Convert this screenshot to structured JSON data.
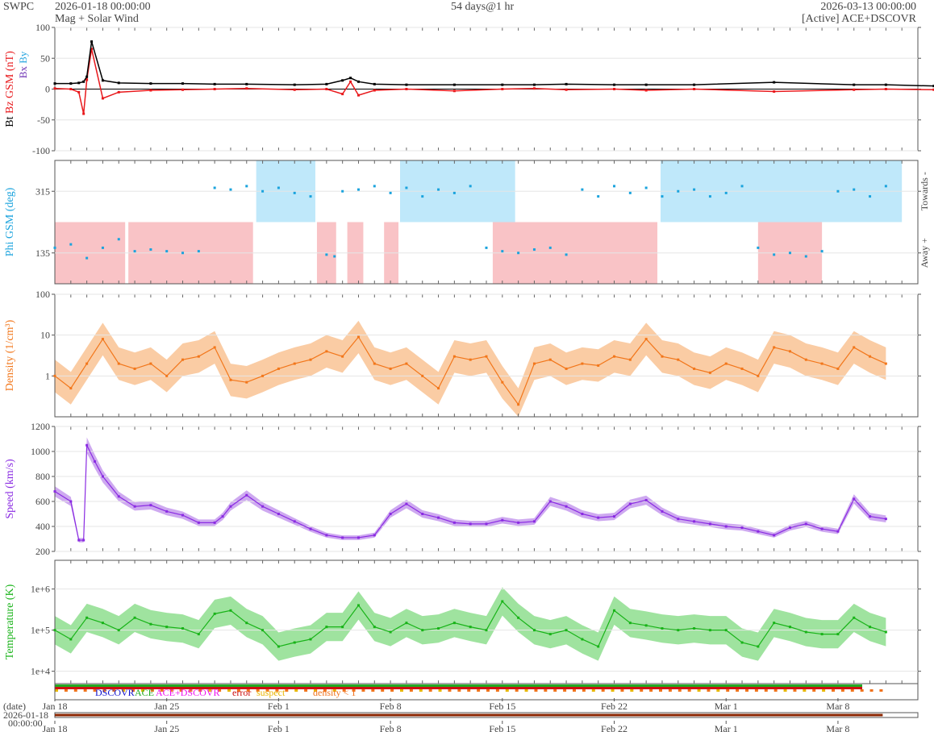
{
  "header": {
    "brand": "SWPC",
    "start": "2026-01-18 00:00:00",
    "title": "Mag + Solar Wind",
    "span": "54 days@1 hr",
    "end": "2026-03-13 00:00:00",
    "source": "[Active] ACE+DSCOVR"
  },
  "colors": {
    "bt": "#000000",
    "bz": "#e8191c",
    "bx": "#6b2fb3",
    "by": "#2aa7e0",
    "phi": "#1aa3dd",
    "towards_fill": "#bfe8fa",
    "away_fill": "#f9c3c6",
    "density": "#f2761a",
    "density_fill": "#f9c79a",
    "speed": "#8a2be2",
    "speed_fill": "#c9a0ee",
    "temperature": "#18b318",
    "temperature_fill": "#95e095",
    "dscovr": "#1111cc",
    "ace": "#22aa22",
    "acedscovr": "#ee11ee",
    "error": "#cc1111",
    "suspect": "#e8b400",
    "density_lt_1": "#f0721c"
  },
  "legend": {
    "dscovr": "DSCOVR",
    "ace": "ACE",
    "acedscovr": "ACE+DSCOVR",
    "error": "error",
    "suspect": "suspect",
    "density_lt_1": "density < 1"
  },
  "footer": {
    "date_label": "(date)",
    "date_value": "2026-01-18",
    "time_value": "00:00:00"
  },
  "chart_data": [
    {
      "id": "mag",
      "type": "scatter",
      "ylabel_parts": [
        "Bt",
        "Bz GSM (nT)"
      ],
      "legend_parts": [
        "Bx",
        "By"
      ],
      "ylim": [
        -100,
        100
      ],
      "yticks": [
        "100",
        "50",
        "0",
        "-50",
        "-100"
      ],
      "ytick_values": [
        100,
        50,
        0,
        -50,
        -100
      ],
      "series": [
        {
          "name": "Bt",
          "x": [
            0,
            1,
            1.5,
            1.8,
            2,
            2.3,
            3,
            4,
            6,
            8,
            10,
            12,
            15,
            17,
            18,
            18.5,
            19,
            20,
            22,
            25,
            28,
            30,
            32,
            35,
            37,
            40,
            45,
            50,
            52,
            55,
            58,
            60,
            62,
            65
          ],
          "y": [
            9,
            9,
            10,
            12,
            20,
            77,
            14,
            10,
            9,
            9,
            8,
            8,
            7,
            8,
            14,
            18,
            12,
            8,
            7,
            7,
            7,
            7,
            8,
            7,
            7,
            7,
            11,
            7,
            7,
            5,
            5,
            5,
            8,
            6
          ]
        },
        {
          "name": "Bz",
          "x": [
            0,
            1,
            1.5,
            1.8,
            2,
            2.3,
            3,
            4,
            6,
            8,
            10,
            12,
            15,
            17,
            18,
            18.5,
            19,
            20,
            22,
            25,
            28,
            30,
            32,
            35,
            37,
            40,
            45,
            50,
            52,
            55,
            58,
            60,
            62,
            65
          ],
          "y": [
            1,
            0,
            -5,
            -40,
            15,
            65,
            -15,
            -5,
            -2,
            -1,
            0,
            1,
            -1,
            0,
            -8,
            12,
            -10,
            -2,
            0,
            -3,
            0,
            1,
            -1,
            0,
            -2,
            0,
            -4,
            -1,
            0,
            -1,
            0,
            -2,
            -3,
            0
          ]
        }
      ]
    },
    {
      "id": "phi",
      "type": "scatter",
      "ylabel": "Phi GSM (deg)",
      "right_labels": [
        "Towards -",
        "Away +"
      ],
      "ylim": [
        45,
        405
      ],
      "yticks": [
        "315",
        "135"
      ],
      "ytick_values": [
        315,
        135
      ],
      "towards_intervals": [
        [
          12.6,
          16.3
        ],
        [
          21.6,
          28.8
        ],
        [
          37.9,
          53
        ]
      ],
      "away_intervals": [
        [
          0,
          4.4
        ],
        [
          4.6,
          12.4
        ],
        [
          16.4,
          17.6
        ],
        [
          18.3,
          19.3
        ],
        [
          20.6,
          21.5
        ],
        [
          27.4,
          37.7
        ],
        [
          44,
          48
        ]
      ],
      "x": [
        0,
        1,
        2,
        3,
        4,
        5,
        6,
        7,
        8,
        9,
        10,
        11,
        12,
        13,
        14,
        15,
        16,
        17,
        17.5,
        18,
        19,
        20,
        21,
        22,
        23,
        24,
        25,
        26,
        27,
        28,
        29,
        30,
        31,
        32,
        33,
        34,
        35,
        36,
        37,
        38,
        39,
        40,
        41,
        42,
        43,
        44,
        45,
        46,
        47,
        48,
        49,
        50,
        51,
        52
      ],
      "y": [
        150,
        160,
        120,
        150,
        175,
        140,
        145,
        140,
        135,
        140,
        325,
        320,
        330,
        315,
        325,
        310,
        300,
        130,
        125,
        315,
        320,
        330,
        310,
        325,
        300,
        320,
        310,
        330,
        150,
        140,
        135,
        145,
        150,
        130,
        320,
        300,
        330,
        310,
        325,
        300,
        315,
        320,
        300,
        310,
        330,
        150,
        130,
        135,
        125,
        140,
        315,
        320,
        300,
        330
      ]
    },
    {
      "id": "density",
      "type": "area",
      "ylabel": "Density (1/cm³)",
      "ylim": [
        0.1,
        100
      ],
      "scale": "log",
      "yticks": [
        "100",
        "10",
        "1"
      ],
      "ytick_values": [
        100,
        10,
        1
      ],
      "x": [
        0,
        1,
        2,
        3,
        4,
        5,
        6,
        7,
        8,
        9,
        10,
        11,
        12,
        13,
        14,
        15,
        16,
        17,
        18,
        19,
        20,
        21,
        22,
        23,
        24,
        25,
        26,
        27,
        28,
        29,
        30,
        31,
        32,
        33,
        34,
        35,
        36,
        37,
        38,
        39,
        40,
        41,
        42,
        43,
        44,
        45,
        46,
        47,
        48,
        49,
        50,
        51,
        52
      ],
      "y": [
        1,
        0.5,
        2,
        8,
        2,
        1.5,
        2,
        1,
        2.5,
        3,
        5,
        0.8,
        0.7,
        1,
        1.5,
        2,
        2.5,
        4,
        3,
        9,
        2,
        1.5,
        2,
        1,
        0.5,
        3,
        2.5,
        3,
        0.7,
        0.2,
        2,
        2.5,
        1.5,
        2,
        1.8,
        3,
        2.5,
        8,
        3,
        2.5,
        1.5,
        1.2,
        2,
        1.5,
        1,
        5,
        4,
        2.5,
        2,
        1.5,
        5,
        3,
        2
      ]
    },
    {
      "id": "speed",
      "type": "area",
      "ylabel": "Speed (km/s)",
      "ylim": [
        200,
        1200
      ],
      "yticks": [
        "1200",
        "1000",
        "800",
        "600",
        "400",
        "200"
      ],
      "ytick_values": [
        1200,
        1000,
        800,
        600,
        400,
        200
      ],
      "x": [
        0,
        1,
        1.5,
        1.8,
        2,
        2.5,
        3,
        4,
        5,
        6,
        7,
        8,
        9,
        10,
        10.5,
        11,
        12,
        13,
        14,
        15,
        16,
        17,
        18,
        19,
        20,
        21,
        22,
        23,
        24,
        25,
        26,
        27,
        28,
        29,
        30,
        31,
        32,
        33,
        34,
        35,
        36,
        37,
        38,
        39,
        40,
        41,
        42,
        43,
        44,
        45,
        46,
        47,
        48,
        49,
        50,
        51,
        52
      ],
      "y": [
        680,
        600,
        290,
        290,
        1050,
        920,
        800,
        640,
        560,
        570,
        520,
        490,
        430,
        430,
        480,
        560,
        650,
        560,
        500,
        440,
        380,
        330,
        310,
        310,
        330,
        500,
        580,
        500,
        470,
        430,
        420,
        420,
        450,
        430,
        440,
        600,
        560,
        500,
        470,
        480,
        580,
        610,
        520,
        460,
        440,
        420,
        400,
        390,
        360,
        330,
        390,
        420,
        380,
        360,
        620,
        480,
        460
      ]
    },
    {
      "id": "temperature",
      "type": "area",
      "ylabel": "Temperature (K)",
      "ylim": [
        5000,
        5000000
      ],
      "scale": "log",
      "yticks": [
        "1e+6",
        "1e+5",
        "1e+4"
      ],
      "ytick_values": [
        1000000,
        100000,
        10000
      ],
      "x": [
        0,
        1,
        2,
        3,
        4,
        5,
        6,
        7,
        8,
        9,
        10,
        11,
        12,
        13,
        14,
        15,
        16,
        17,
        18,
        19,
        20,
        21,
        22,
        23,
        24,
        25,
        26,
        27,
        28,
        29,
        30,
        31,
        32,
        33,
        34,
        35,
        36,
        37,
        38,
        39,
        40,
        41,
        42,
        43,
        44,
        45,
        46,
        47,
        48,
        49,
        50,
        51,
        52
      ],
      "y": [
        100000,
        60000,
        200000,
        150000,
        100000,
        200000,
        140000,
        120000,
        110000,
        80000,
        250000,
        300000,
        150000,
        100000,
        40000,
        50000,
        60000,
        120000,
        120000,
        400000,
        120000,
        90000,
        150000,
        100000,
        110000,
        150000,
        120000,
        100000,
        500000,
        200000,
        100000,
        80000,
        100000,
        60000,
        40000,
        300000,
        150000,
        130000,
        110000,
        100000,
        110000,
        100000,
        100000,
        50000,
        40000,
        150000,
        120000,
        90000,
        80000,
        80000,
        200000,
        120000,
        90000
      ]
    }
  ],
  "x_axis": {
    "xlim_days": [
      0,
      54
    ],
    "tick_days": [
      0,
      7,
      14,
      21,
      28,
      35,
      42,
      49
    ],
    "tick_labels": [
      "Jan 18",
      "Jan 25",
      "Feb 1",
      "Feb 8",
      "Feb 15",
      "Feb 22",
      "Mar 1",
      "Mar 8"
    ]
  }
}
